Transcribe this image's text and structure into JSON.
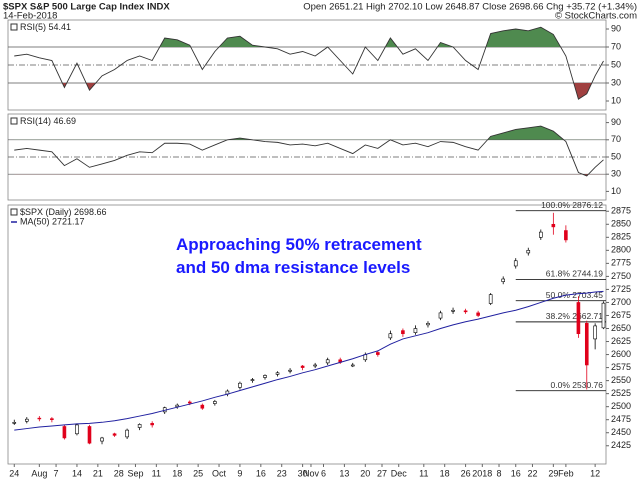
{
  "header": {
    "title": "$SPX S&P 500 Large Cap Index INDX",
    "date": "14-Feb-2018",
    "quote": "Open 2651.21 High 2702.10 Low 2648.87 Close 2698.66 Chg +35.72 (+1.34%)",
    "credit": "© StockCharts.com"
  },
  "chart_data": [
    {
      "type": "line",
      "x": [
        0,
        3,
        6,
        9,
        12,
        15,
        18,
        21,
        24,
        27,
        30,
        33,
        36,
        39,
        42,
        45,
        48,
        51,
        54,
        57,
        60,
        63,
        66,
        69,
        72,
        75,
        78,
        81,
        84,
        87,
        90,
        93,
        96,
        99,
        102,
        105,
        108,
        111,
        114,
        117,
        120,
        123,
        126,
        129,
        132,
        135,
        137,
        139,
        141
      ],
      "series": [
        {
          "name": "RSI(5) 54.41",
          "color": "#333333",
          "values": [
            60,
            62,
            58,
            55,
            25,
            52,
            22,
            38,
            45,
            55,
            60,
            55,
            80,
            78,
            72,
            45,
            65,
            80,
            82,
            72,
            70,
            68,
            62,
            65,
            60,
            70,
            55,
            40,
            70,
            55,
            80,
            62,
            68,
            55,
            75,
            70,
            55,
            45,
            85,
            88,
            90,
            88,
            92,
            84,
            60,
            12,
            18,
            38,
            54.41
          ]
        }
      ],
      "xlim": [
        -1.5,
        141.6
      ],
      "ylim": [
        0,
        100
      ],
      "yticks": [
        10,
        30,
        50,
        70,
        90
      ],
      "reference_lines": [
        70,
        50,
        30
      ],
      "overbought": 70,
      "oversold": 30
    },
    {
      "type": "line",
      "x": [
        0,
        3,
        6,
        9,
        12,
        15,
        18,
        21,
        24,
        27,
        30,
        33,
        36,
        39,
        42,
        45,
        48,
        51,
        54,
        57,
        60,
        63,
        66,
        69,
        72,
        75,
        78,
        81,
        84,
        87,
        90,
        93,
        96,
        99,
        102,
        105,
        108,
        111,
        114,
        117,
        120,
        123,
        126,
        129,
        132,
        135,
        137,
        139,
        141
      ],
      "series": [
        {
          "name": "RSI(14) 46.69",
          "color": "#333333",
          "values": [
            58,
            60,
            58,
            56,
            40,
            48,
            38,
            42,
            46,
            52,
            56,
            55,
            66,
            66,
            65,
            58,
            64,
            70,
            72,
            70,
            68,
            67,
            64,
            65,
            63,
            66,
            60,
            54,
            64,
            60,
            70,
            64,
            66,
            62,
            68,
            67,
            62,
            58,
            74,
            78,
            82,
            84,
            86,
            80,
            68,
            32,
            28,
            38,
            46.69
          ]
        }
      ],
      "xlim": [
        -1.5,
        141.6
      ],
      "ylim": [
        0,
        100
      ],
      "yticks": [
        10,
        30,
        50,
        70,
        90
      ],
      "reference_lines": [
        70,
        50,
        30
      ],
      "overbought": 70,
      "oversold": 30
    },
    {
      "type": "candlestick",
      "name": "$SPX (Daily) 2698.66",
      "x": [
        0,
        3,
        6,
        9,
        12,
        15,
        18,
        21,
        24,
        27,
        30,
        33,
        36,
        39,
        42,
        45,
        48,
        51,
        54,
        57,
        60,
        63,
        66,
        69,
        72,
        75,
        78,
        81,
        84,
        87,
        90,
        93,
        96,
        99,
        102,
        105,
        108,
        111,
        114,
        117,
        120,
        123,
        126,
        129,
        132,
        135,
        137,
        139,
        141
      ],
      "open": [
        2468,
        2472,
        2478,
        2477,
        2462,
        2448,
        2462,
        2434,
        2448,
        2442,
        2460,
        2468,
        2490,
        2500,
        2509,
        2503,
        2506,
        2524,
        2537,
        2550,
        2556,
        2562,
        2568,
        2578,
        2578,
        2584,
        2590,
        2578,
        2590,
        2604,
        2632,
        2646,
        2642,
        2657,
        2670,
        2683,
        2684,
        2680,
        2698,
        2740,
        2770,
        2795,
        2825,
        2850,
        2838,
        2700,
        2660,
        2630,
        2651.21
      ],
      "high": [
        2475,
        2480,
        2482,
        2480,
        2465,
        2468,
        2465,
        2442,
        2450,
        2458,
        2468,
        2472,
        2500,
        2506,
        2512,
        2506,
        2513,
        2533,
        2548,
        2555,
        2562,
        2568,
        2574,
        2580,
        2584,
        2594,
        2594,
        2584,
        2604,
        2608,
        2646,
        2650,
        2656,
        2664,
        2684,
        2690,
        2688,
        2684,
        2718,
        2750,
        2785,
        2805,
        2840,
        2872,
        2848,
        2712,
        2665,
        2660,
        2702.1
      ],
      "low": [
        2465,
        2468,
        2472,
        2470,
        2437,
        2445,
        2428,
        2428,
        2442,
        2438,
        2455,
        2460,
        2486,
        2496,
        2503,
        2494,
        2502,
        2520,
        2533,
        2546,
        2552,
        2558,
        2564,
        2570,
        2574,
        2580,
        2582,
        2576,
        2586,
        2596,
        2628,
        2634,
        2638,
        2652,
        2666,
        2678,
        2678,
        2672,
        2695,
        2735,
        2765,
        2790,
        2820,
        2830,
        2815,
        2632,
        2533,
        2610,
        2648.87
      ],
      "close": [
        2470,
        2476,
        2477,
        2475,
        2440,
        2465,
        2430,
        2440,
        2445,
        2455,
        2466,
        2465,
        2498,
        2503,
        2507,
        2497,
        2510,
        2530,
        2545,
        2552,
        2560,
        2565,
        2570,
        2575,
        2580,
        2590,
        2585,
        2580,
        2600,
        2600,
        2640,
        2640,
        2650,
        2660,
        2680,
        2685,
        2682,
        2675,
        2715,
        2745,
        2780,
        2800,
        2835,
        2845,
        2820,
        2640,
        2580,
        2655,
        2698.66
      ],
      "series": [
        {
          "name": "MA(50) 2721.17",
          "color": "#2020a0",
          "values": [
            2455,
            2458,
            2461,
            2463,
            2465,
            2467,
            2468,
            2470,
            2473,
            2477,
            2482,
            2487,
            2493,
            2499,
            2505,
            2511,
            2518,
            2524,
            2531,
            2538,
            2545,
            2552,
            2558,
            2565,
            2571,
            2578,
            2585,
            2592,
            2600,
            2607,
            2620,
            2630,
            2636,
            2642,
            2650,
            2657,
            2663,
            2668,
            2674,
            2680,
            2685,
            2692,
            2700,
            2708,
            2714,
            2717,
            2718,
            2720,
            2721.17
          ]
        }
      ],
      "up_color": "#ffffff",
      "down_color": "#e0001b",
      "xlim": [
        -1.5,
        141.6
      ],
      "ylim": [
        2390,
        2887
      ],
      "yticks": [
        2425,
        2450,
        2475,
        2500,
        2525,
        2550,
        2575,
        2600,
        2625,
        2650,
        2675,
        2700,
        2725,
        2750,
        2775,
        2800,
        2825,
        2850,
        2875
      ],
      "xticks": [
        {
          "value": 0,
          "label": "24"
        },
        {
          "value": 6,
          "label": "Aug"
        },
        {
          "value": 10,
          "label": "7"
        },
        {
          "value": 15,
          "label": "14"
        },
        {
          "value": 20,
          "label": "21"
        },
        {
          "value": 25,
          "label": "28"
        },
        {
          "value": 29,
          "label": "Sep"
        },
        {
          "value": 34,
          "label": "11"
        },
        {
          "value": 39,
          "label": "18"
        },
        {
          "value": 44,
          "label": "25"
        },
        {
          "value": 49,
          "label": "Oct"
        },
        {
          "value": 54,
          "label": "9"
        },
        {
          "value": 59,
          "label": "16"
        },
        {
          "value": 64,
          "label": "23"
        },
        {
          "value": 69,
          "label": "30"
        },
        {
          "value": 71,
          "label": "Nov"
        },
        {
          "value": 74,
          "label": "6"
        },
        {
          "value": 79,
          "label": "13"
        },
        {
          "value": 84,
          "label": "20"
        },
        {
          "value": 88,
          "label": "27"
        },
        {
          "value": 92,
          "label": "Dec"
        },
        {
          "value": 98,
          "label": "11"
        },
        {
          "value": 103,
          "label": "18"
        },
        {
          "value": 108,
          "label": "26"
        },
        {
          "value": 112,
          "label": "2018"
        },
        {
          "value": 116,
          "label": "8"
        },
        {
          "value": 120,
          "label": "16"
        },
        {
          "value": 124,
          "label": "22"
        },
        {
          "value": 129,
          "label": "29"
        },
        {
          "value": 132,
          "label": "Feb"
        },
        {
          "value": 139,
          "label": "12"
        }
      ],
      "fib_levels": [
        {
          "value": 2876.12,
          "label": "100.0% 2876.12"
        },
        {
          "value": 2744.19,
          "label": "61.8% 2744.19"
        },
        {
          "value": 2703.45,
          "label": "50.0% 2703.45"
        },
        {
          "value": 2662.71,
          "label": "38.2% 2662.71"
        },
        {
          "value": 2530.76,
          "label": "0.0% 2530.76"
        }
      ],
      "fib_start": 120,
      "annotation": [
        "Approaching 50% retracement",
        "and 50 dma resistance levels"
      ]
    }
  ]
}
